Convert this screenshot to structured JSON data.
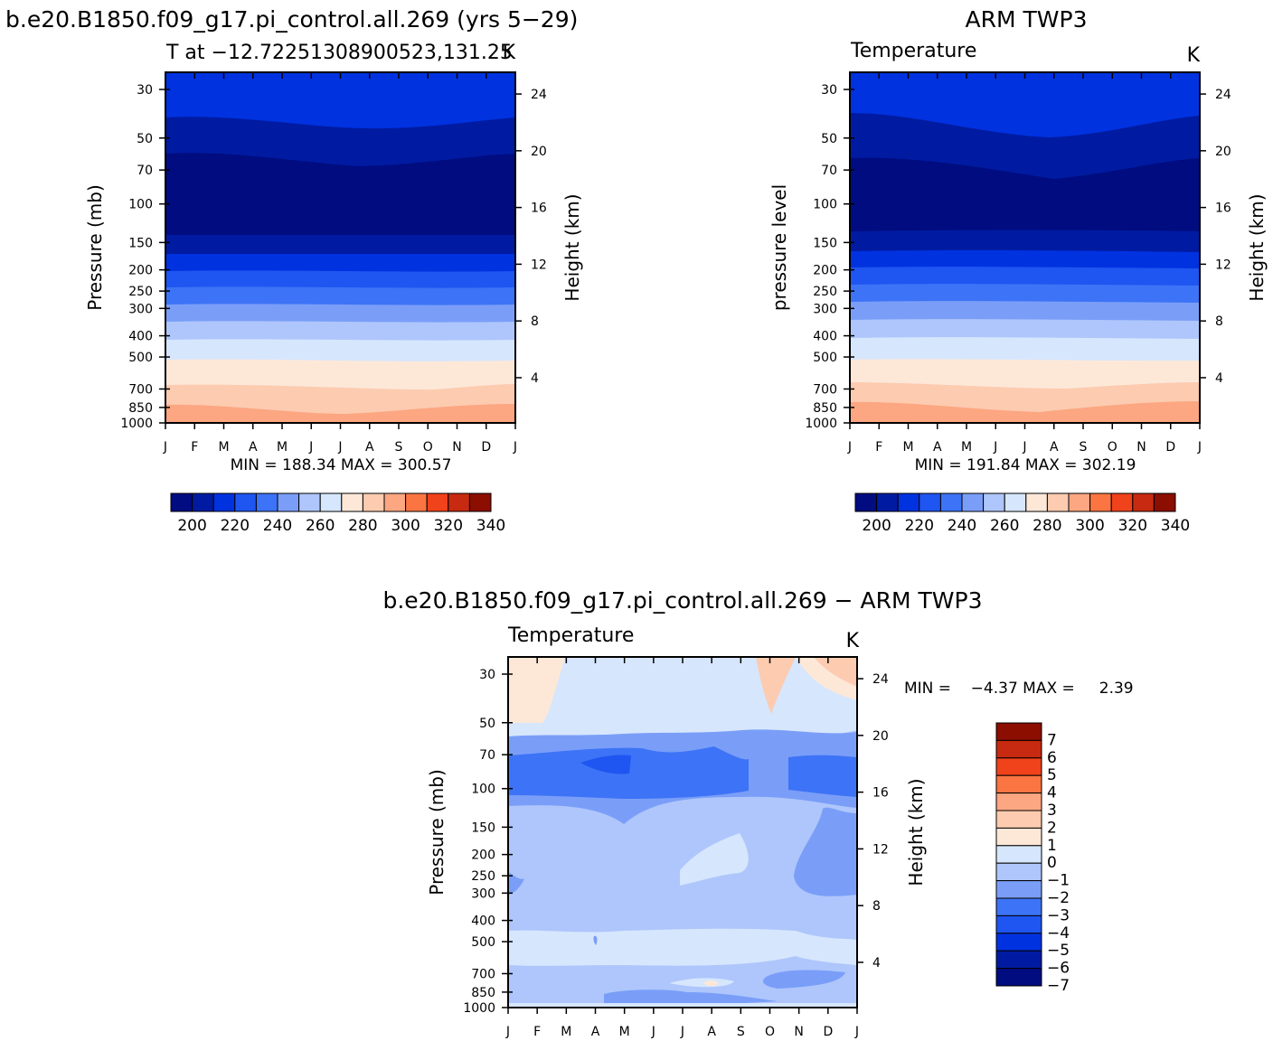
{
  "figure": {
    "main_title": "b.e20.B1850.f09_g17.pi_control.all.269 (yrs 5−29)",
    "obs_title": "ARM TWP3",
    "diff_title": "b.e20.B1850.f09_g17.pi_control.all.269 − ARM TWP3"
  },
  "panels": {
    "model": {
      "left": "T at −12.72251308900523,131.25",
      "right": "K",
      "ylabel": "Pressure (mb)",
      "ylabel2": "Height (km)",
      "stats": "MIN = 188.34 MAX = 300.57"
    },
    "obs": {
      "left": "Temperature",
      "right": "K",
      "ylabel": "pressure level",
      "ylabel2": "Height (km)",
      "stats": "MIN = 191.84 MAX = 302.19"
    },
    "diff": {
      "left": "Temperature",
      "right": "K",
      "ylabel": "Pressure (mb)",
      "ylabel2": "Height (km)",
      "stats": "MIN =    −4.37 MAX =     2.39"
    }
  },
  "colors": {
    "temp_fills": [
      "#000c80",
      "#001ba1",
      "#0032e0",
      "#1f55f0",
      "#3d73f6",
      "#7a9ef8",
      "#aec6fb",
      "#d6e6fd",
      "#fde8d8",
      "#fccbb0",
      "#fca682",
      "#fb7542",
      "#f0421b",
      "#c72a10",
      "#8b0e00"
    ],
    "diff_fills": [
      "#000c80",
      "#001ba1",
      "#0032e0",
      "#1f55f0",
      "#3d73f6",
      "#7a9ef8",
      "#aec6fb",
      "#d6e6fd",
      "#fde8d8",
      "#fccbb0",
      "#fca682",
      "#fb7542",
      "#f0421b",
      "#c72a10",
      "#8b0e00"
    ]
  },
  "chart_data": [
    {
      "type": "heatmap",
      "panel": "model",
      "x": [
        "J",
        "F",
        "M",
        "A",
        "M",
        "J",
        "J",
        "A",
        "S",
        "O",
        "N",
        "D",
        "J"
      ],
      "y_pressure_mb": [
        30,
        50,
        70,
        100,
        150,
        200,
        250,
        300,
        400,
        500,
        700,
        850,
        1000
      ],
      "y_height_km": [
        24,
        20,
        16,
        12,
        8,
        4
      ],
      "colorbar_levels": [
        195,
        200,
        205,
        210,
        215,
        220,
        225,
        230,
        235,
        240,
        245,
        250,
        255,
        260,
        265,
        270,
        275,
        280,
        285,
        290,
        295,
        300,
        305,
        310,
        315,
        320,
        325,
        330,
        335,
        340,
        345
      ],
      "colorbar_ticks": [
        "200",
        "220",
        "240",
        "260",
        "280",
        "300",
        "320",
        "340"
      ],
      "min": 188.34,
      "max": 300.57
    },
    {
      "type": "heatmap",
      "panel": "obs",
      "x": [
        "J",
        "F",
        "M",
        "A",
        "M",
        "J",
        "J",
        "A",
        "S",
        "O",
        "N",
        "D",
        "J"
      ],
      "y_pressure_mb": [
        30,
        50,
        70,
        100,
        150,
        200,
        250,
        300,
        400,
        500,
        700,
        850,
        1000
      ],
      "y_height_km": [
        24,
        20,
        16,
        12,
        8,
        4
      ],
      "colorbar_ticks": [
        "200",
        "220",
        "240",
        "260",
        "280",
        "300",
        "320",
        "340"
      ],
      "min": 191.84,
      "max": 302.19
    },
    {
      "type": "heatmap",
      "panel": "diff",
      "x": [
        "J",
        "F",
        "M",
        "A",
        "M",
        "J",
        "J",
        "A",
        "S",
        "O",
        "N",
        "D",
        "J"
      ],
      "y_pressure_mb": [
        30,
        50,
        70,
        100,
        150,
        200,
        250,
        300,
        400,
        500,
        700,
        850,
        1000
      ],
      "y_height_km": [
        24,
        20,
        16,
        12,
        8,
        4
      ],
      "colorbar_ticks": [
        "7",
        "6",
        "5",
        "4",
        "3",
        "2",
        "1",
        "0",
        "−1",
        "−2",
        "−3",
        "−4",
        "−5",
        "−6",
        "−7"
      ],
      "min": -4.37,
      "max": 2.39
    }
  ]
}
